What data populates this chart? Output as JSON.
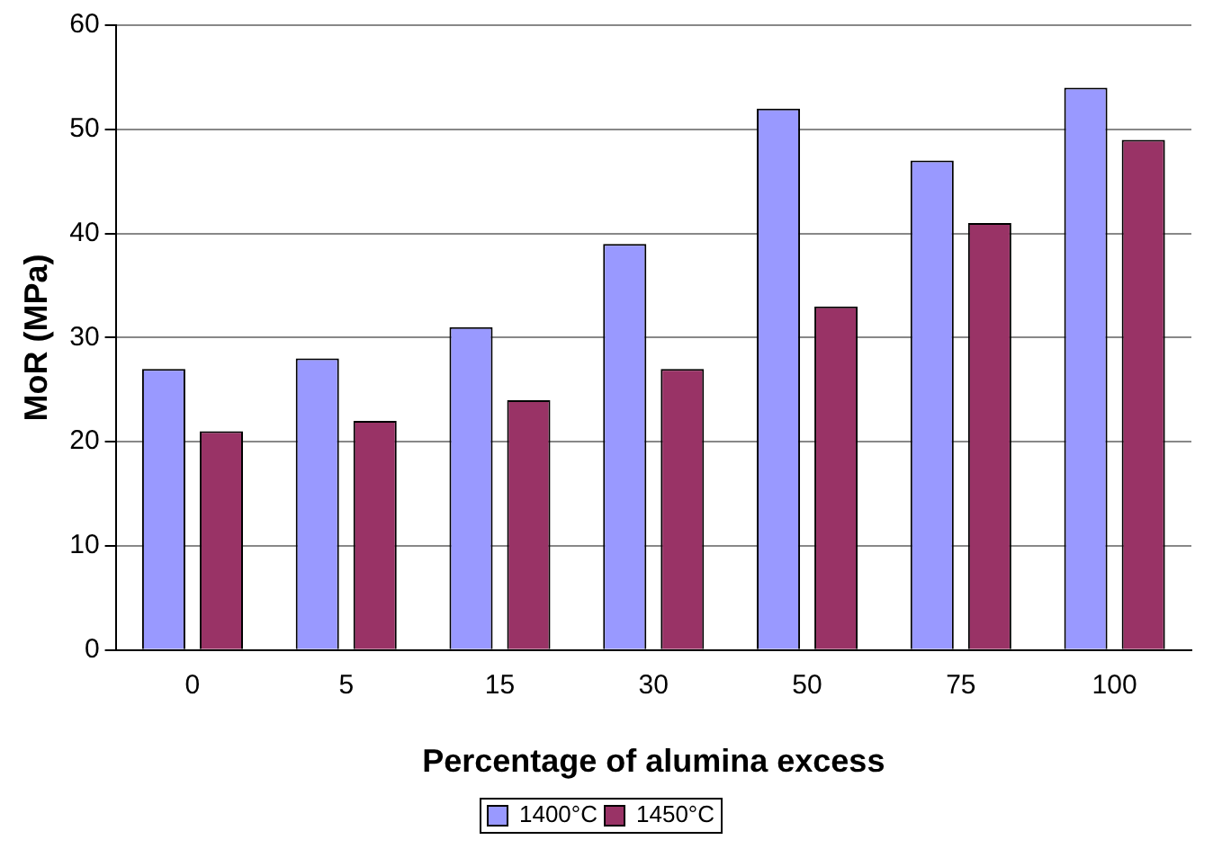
{
  "chart_data": {
    "type": "bar",
    "xlabel": "Percentage of alumina excess",
    "ylabel": "MoR (MPa)",
    "categories": [
      "0",
      "5",
      "15",
      "30",
      "50",
      "75",
      "100"
    ],
    "series": [
      {
        "name": "1400°C",
        "color": "#9999ff",
        "values": [
          27,
          28,
          31,
          39,
          52,
          47,
          54
        ]
      },
      {
        "name": "1450°C",
        "color": "#993366",
        "values": [
          21,
          22,
          24,
          27,
          33,
          41,
          49
        ]
      }
    ],
    "ylim": [
      0,
      60
    ],
    "yticks": [
      0,
      10,
      20,
      30,
      40,
      50,
      60
    ],
    "grid": "y",
    "legend": "bottom"
  }
}
